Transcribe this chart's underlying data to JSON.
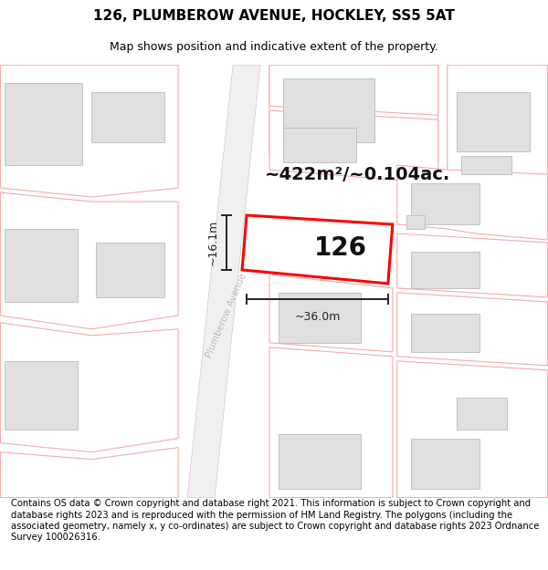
{
  "title": "126, PLUMBEROW AVENUE, HOCKLEY, SS5 5AT",
  "subtitle": "Map shows position and indicative extent of the property.",
  "footer": "Contains OS data © Crown copyright and database right 2021. This information is subject to Crown copyright and database rights 2023 and is reproduced with the permission of HM Land Registry. The polygons (including the associated geometry, namely x, y co-ordinates) are subject to Crown copyright and database rights 2023 Ordnance Survey 100026316.",
  "area_label": "~422m²/~0.104ac.",
  "width_label": "~36.0m",
  "height_label": "~16.1m",
  "plot_number": "126",
  "bg_color": "#ffffff",
  "plot_color": "#ff0000",
  "building_fill": "#e0e0e0",
  "building_edge": "#bbbbbb",
  "plot_fill": "#ffffff",
  "neighbor_line_color": "#f5aaaa",
  "neighbor_fill": "#ffffff",
  "road_fill": "#f0f0f0",
  "road_edge": "#cccccc",
  "road_label_color": "#bbbbbb",
  "dim_color": "#222222",
  "title_fontsize": 11,
  "subtitle_fontsize": 9,
  "footer_fontsize": 7.2,
  "area_fontsize": 14,
  "plot_num_fontsize": 20,
  "dim_fontsize": 9
}
